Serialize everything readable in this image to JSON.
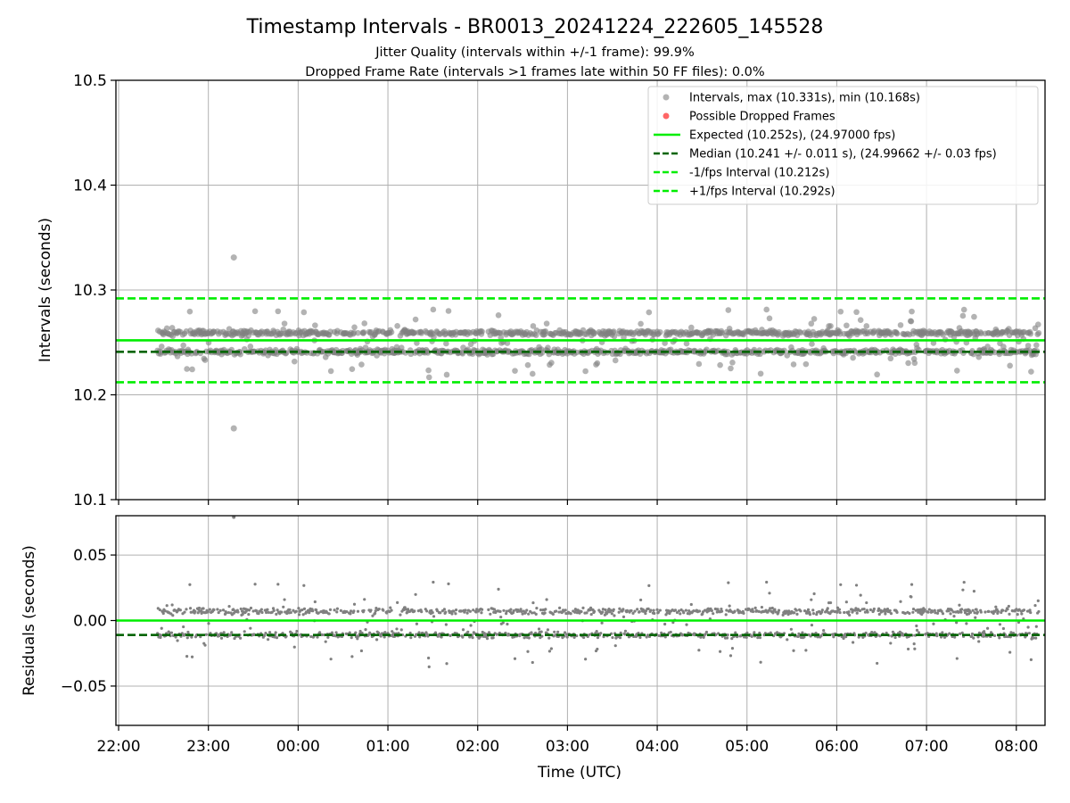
{
  "chart_data": [
    {
      "type": "scatter",
      "title": "Timestamp Intervals - BR0013_20241224_222605_145528",
      "subtitle_lines": [
        "Jitter Quality (intervals within +/-1 frame): 99.9%",
        "Dropped Frame Rate (intervals >1 frames late within 50 FF files): 0.0%"
      ],
      "xlabel": "",
      "ylabel": "Intervals (seconds)",
      "x_range_hours": [
        21.97,
        32.32
      ],
      "x_start": "22:26",
      "x_end": "08:15",
      "ylim": [
        10.1,
        10.5
      ],
      "yticks": [
        "10.1",
        "10.2",
        "10.3",
        "10.4",
        "10.5"
      ],
      "grid": true,
      "legend_position": "top-right",
      "series": [
        {
          "name": "Intervals, max (10.331s), min (10.168s)",
          "kind": "points",
          "color": "#808080",
          "levels": [
            10.259,
            10.241
          ],
          "spread": 0.004,
          "scatter": 0.03,
          "outliers": [
            {
              "x": "23:17",
              "y": 10.331
            },
            {
              "x": "23:17",
              "y": 10.168
            }
          ]
        },
        {
          "name": "Possible Dropped Frames",
          "kind": "points",
          "color": "#ff0000",
          "values": []
        },
        {
          "name": "Expected (10.252s), (24.97000 fps)",
          "kind": "hline",
          "y": 10.252,
          "color": "#00ee00",
          "dash": "solid"
        },
        {
          "name": "Median (10.241 +/- 0.011 s), (24.99662 +/- 0.03 fps)",
          "kind": "hline",
          "y": 10.241,
          "color": "#006400",
          "dash": "dashed"
        },
        {
          "name": "-1/fps Interval (10.212s)",
          "kind": "hline",
          "y": 10.212,
          "color": "#00ee00",
          "dash": "dashed"
        },
        {
          "name": "+1/fps Interval (10.292s)",
          "kind": "hline",
          "y": 10.292,
          "color": "#00ee00",
          "dash": "dashed"
        }
      ]
    },
    {
      "type": "scatter",
      "title": "",
      "xlabel": "Time (UTC)",
      "ylabel": "Residuals (seconds)",
      "x_range_hours": [
        21.97,
        32.32
      ],
      "xticks": [
        "22:00",
        "23:00",
        "00:00",
        "01:00",
        "02:00",
        "03:00",
        "04:00",
        "05:00",
        "06:00",
        "07:00",
        "08:00"
      ],
      "ylim": [
        -0.08,
        0.08
      ],
      "yticks": [
        "−0.05",
        "0.00",
        "0.05"
      ],
      "grid": true,
      "series": [
        {
          "name": "",
          "kind": "points",
          "color": "#808080",
          "levels": [
            0.007,
            -0.011
          ],
          "spread": 0.004,
          "scatter": 0.03
        },
        {
          "name": "",
          "kind": "hline",
          "y": 0.0,
          "color": "#00ee00",
          "dash": "solid"
        },
        {
          "name": "",
          "kind": "hline",
          "y": -0.011,
          "color": "#006400",
          "dash": "dashed"
        }
      ]
    }
  ]
}
